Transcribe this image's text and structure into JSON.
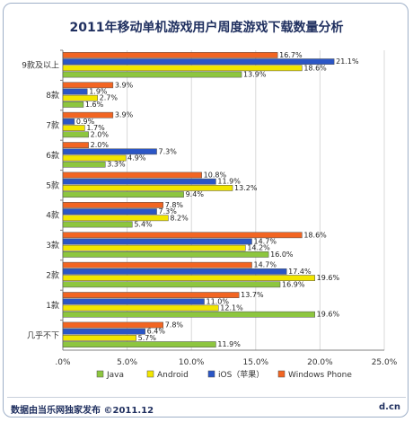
{
  "chart_data": {
    "type": "bar",
    "orientation": "horizontal",
    "title": "2011年移动单机游戏用户周度游戏下载数量分析",
    "categories": [
      "9款及以上",
      "8款",
      "7款",
      "6款",
      "5款",
      "4款",
      "3款",
      "2款",
      "1款",
      "几乎不下"
    ],
    "series": [
      {
        "name": "Windows Phone",
        "color": "#f26522",
        "values": [
          16.7,
          3.9,
          3.9,
          2.0,
          10.8,
          7.8,
          18.6,
          14.7,
          13.7,
          7.8
        ]
      },
      {
        "name": "iOS（苹果）",
        "color": "#2b56c6",
        "values": [
          21.1,
          1.9,
          0.9,
          7.3,
          11.9,
          7.3,
          14.7,
          17.4,
          11.0,
          6.4
        ]
      },
      {
        "name": "Android",
        "color": "#f2e600",
        "values": [
          18.6,
          2.7,
          1.7,
          4.9,
          13.2,
          8.2,
          14.2,
          19.6,
          12.1,
          5.7
        ]
      },
      {
        "name": "Java",
        "color": "#8dc63f",
        "values": [
          13.9,
          1.6,
          2.0,
          3.3,
          9.4,
          5.4,
          16.0,
          16.9,
          19.6,
          11.9
        ]
      }
    ],
    "xlim": [
      0,
      25
    ],
    "xticks": [
      ".0%",
      "5.0%",
      "10.0%",
      "15.0%",
      "20.0%",
      "25.0%"
    ],
    "legend_order": [
      "Java",
      "Android",
      "iOS（苹果）",
      "Windows Phone"
    ],
    "legend_placement": "bottom",
    "grid": true,
    "value_suffix": "%"
  },
  "footer": {
    "source": "数据由当乐网独家发布  ©2011.12",
    "brand": "d.cn"
  }
}
